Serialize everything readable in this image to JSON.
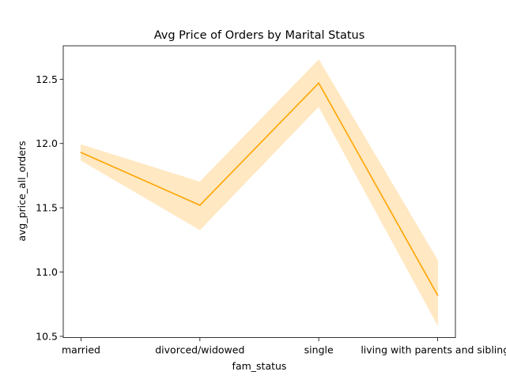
{
  "chart_data": {
    "type": "line",
    "title": "Avg Price of Orders by Marital Status",
    "xlabel": "fam_status",
    "ylabel": "avg_price_all_orders",
    "categories": [
      "married",
      "divorced/widowed",
      "single",
      "living with parents and siblings"
    ],
    "series": [
      {
        "values": [
          11.93,
          11.52,
          12.47,
          10.82
        ],
        "ci_lower": [
          11.87,
          11.33,
          12.29,
          10.59
        ],
        "ci_upper": [
          11.99,
          11.7,
          12.65,
          11.09
        ]
      }
    ],
    "ylim": [
      10.49,
      12.76
    ],
    "yticks": [
      10.5,
      11.0,
      11.5,
      12.0,
      12.5
    ],
    "ytick_labels": [
      "10.5",
      "11.0",
      "11.5",
      "12.0",
      "12.5"
    ],
    "grid": false,
    "colors": {
      "line": "#ffa500",
      "band": "#ffe8c2"
    }
  }
}
